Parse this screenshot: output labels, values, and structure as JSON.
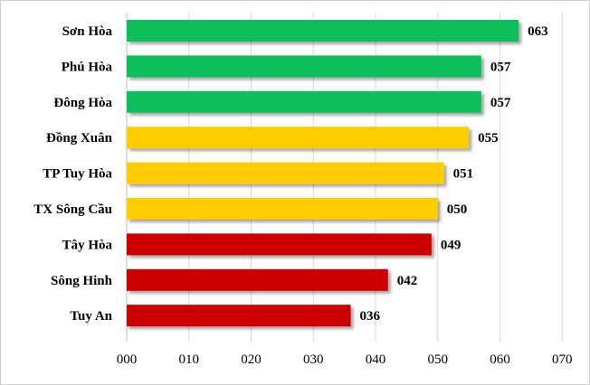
{
  "chart_data": {
    "type": "bar",
    "orientation": "horizontal",
    "categories": [
      "Sơn Hòa",
      "Phú Hòa",
      "Đông Hòa",
      "Đồng Xuân",
      "TP Tuy Hòa",
      "TX Sông Cầu",
      "Tây Hòa",
      "Sông Hinh",
      "Tuy An"
    ],
    "values": [
      63,
      57,
      57,
      55,
      51,
      50,
      49,
      42,
      36
    ],
    "value_labels": [
      "063",
      "057",
      "057",
      "055",
      "051",
      "050",
      "049",
      "042",
      "036"
    ],
    "bar_colors": [
      "#0dbf5a",
      "#0dbf5a",
      "#0dbf5a",
      "#ffcc00",
      "#ffcc00",
      "#ffcc00",
      "#cc0000",
      "#cc0000",
      "#cc0000"
    ],
    "xlim": [
      0,
      70
    ],
    "xticks": [
      0,
      10,
      20,
      30,
      40,
      50,
      60,
      70
    ],
    "xtick_labels": [
      "000",
      "010",
      "020",
      "030",
      "040",
      "050",
      "060",
      "070"
    ],
    "title": "",
    "xlabel": "",
    "ylabel": "",
    "grid": "vertical",
    "legend": "none"
  }
}
